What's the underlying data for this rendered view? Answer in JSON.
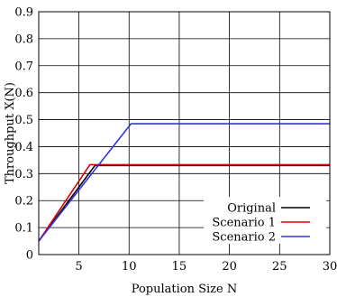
{
  "chart_data": {
    "type": "line",
    "xlabel": "Population Size N",
    "ylabel": "Throughput X(N)",
    "xlim": [
      1,
      30
    ],
    "ylim": [
      0,
      0.9
    ],
    "x_ticks": [
      5,
      10,
      15,
      20,
      25,
      30
    ],
    "y_ticks": [
      0,
      0.1,
      0.2,
      0.3,
      0.4,
      0.5,
      0.6,
      0.7,
      0.8,
      0.9
    ],
    "grid": true,
    "legend_position": "bottom-right",
    "series": [
      {
        "name": "Original",
        "color": "#000000",
        "x": [
          1,
          6.6,
          30
        ],
        "y": [
          0.05,
          0.33,
          0.33
        ]
      },
      {
        "name": "Scenario 1",
        "color": "#dd0000",
        "x": [
          1,
          6.1,
          30
        ],
        "y": [
          0.05,
          0.333,
          0.333
        ]
      },
      {
        "name": "Scenario 2",
        "color": "#3333dd",
        "x": [
          1,
          10.2,
          30
        ],
        "y": [
          0.05,
          0.485,
          0.485
        ]
      }
    ]
  }
}
